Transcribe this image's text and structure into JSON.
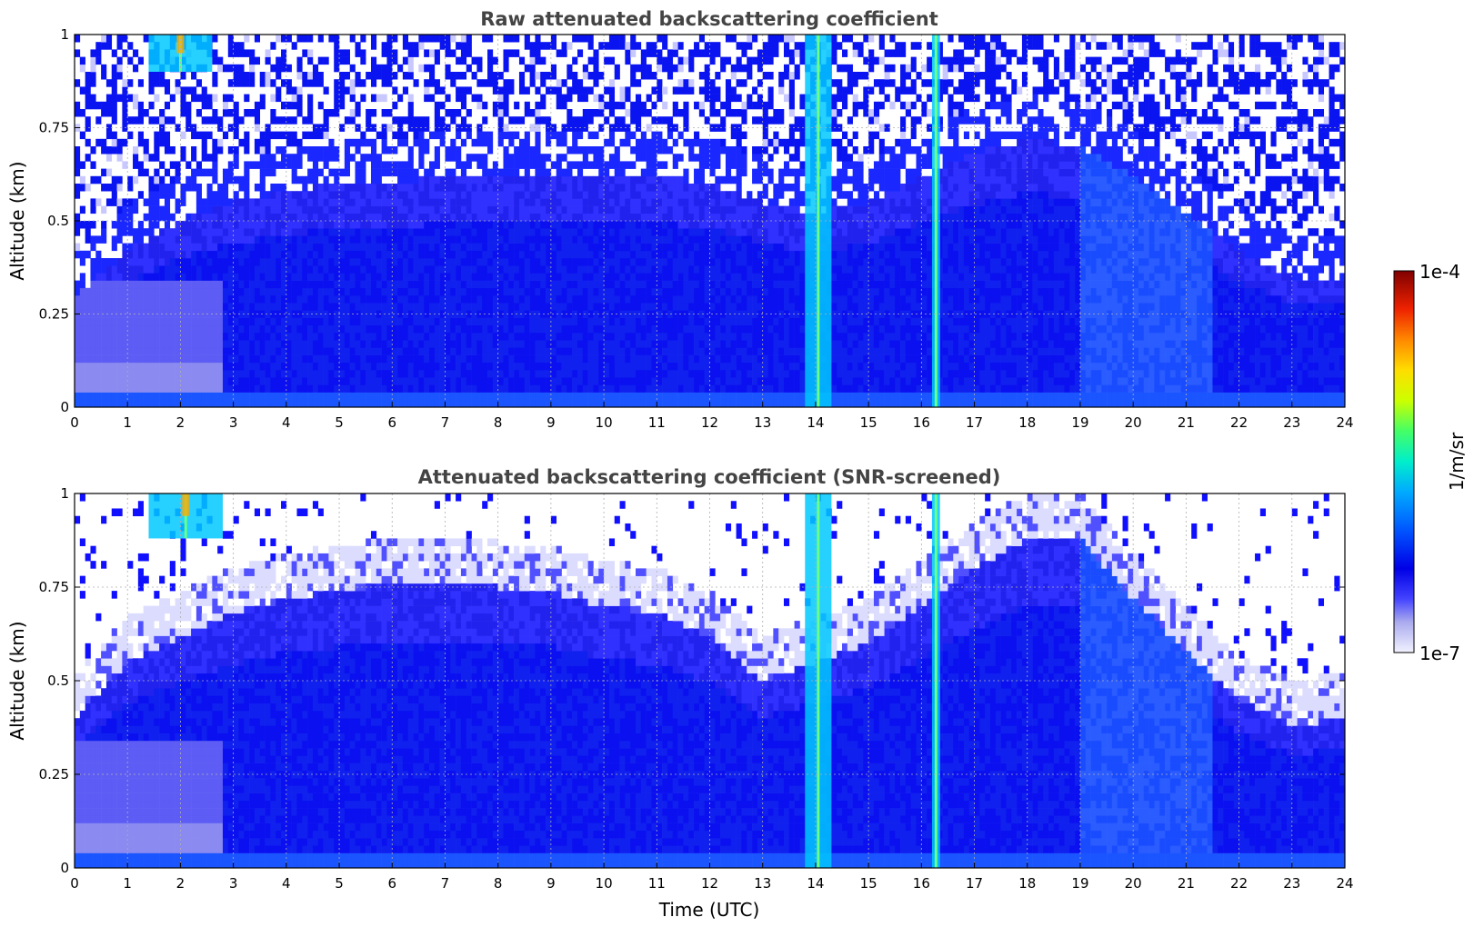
{
  "chart_data": [
    {
      "type": "heatmap",
      "title": "Raw attenuated backscattering coefficient",
      "xlabel": "",
      "ylabel": "Altitude (km)",
      "xlim": [
        0,
        24
      ],
      "ylim": [
        0,
        1
      ],
      "xticks": [
        "0",
        "1",
        "2",
        "3",
        "4",
        "5",
        "6",
        "7",
        "8",
        "9",
        "10",
        "11",
        "12",
        "13",
        "14",
        "15",
        "16",
        "17",
        "18",
        "19",
        "20",
        "21",
        "22",
        "23",
        "24"
      ],
      "yticks": [
        "0",
        "0.25",
        "0.5",
        "0.75",
        "1"
      ],
      "grid": true,
      "aerosol_layer_top_km": [
        [
          0,
          0.3
        ],
        [
          1,
          0.42
        ],
        [
          2,
          0.5
        ],
        [
          3,
          0.55
        ],
        [
          4,
          0.58
        ],
        [
          5,
          0.6
        ],
        [
          6,
          0.6
        ],
        [
          7,
          0.62
        ],
        [
          8,
          0.62
        ],
        [
          9,
          0.62
        ],
        [
          10,
          0.62
        ],
        [
          11,
          0.62
        ],
        [
          12,
          0.6
        ],
        [
          13,
          0.55
        ],
        [
          14,
          0.52
        ],
        [
          15,
          0.55
        ],
        [
          16,
          0.62
        ],
        [
          17,
          0.68
        ],
        [
          18,
          0.72
        ],
        [
          19,
          0.7
        ],
        [
          20,
          0.62
        ],
        [
          21,
          0.52
        ],
        [
          22,
          0.42
        ],
        [
          23,
          0.35
        ],
        [
          24,
          0.35
        ]
      ],
      "cloud_features": [
        {
          "t_start": 1.4,
          "t_end": 2.6,
          "alt_min_km": 0.9,
          "alt_max_km": 1.0
        },
        {
          "t_start": 13.8,
          "t_end": 14.3,
          "alt_min_km": 0.0,
          "alt_max_km": 1.0
        },
        {
          "t_start": 16.2,
          "t_end": 16.35,
          "alt_min_km": 0.0,
          "alt_max_km": 1.0
        }
      ]
    },
    {
      "type": "heatmap",
      "title": "Attenuated backscattering coefficient (SNR-screened)",
      "xlabel": "Time (UTC)",
      "ylabel": "Altitude (km)",
      "xlim": [
        0,
        24
      ],
      "ylim": [
        0,
        1
      ],
      "xticks": [
        "0",
        "1",
        "2",
        "3",
        "4",
        "5",
        "6",
        "7",
        "8",
        "9",
        "10",
        "11",
        "12",
        "13",
        "14",
        "15",
        "16",
        "17",
        "18",
        "19",
        "20",
        "21",
        "22",
        "23",
        "24"
      ],
      "yticks": [
        "0",
        "0.25",
        "0.5",
        "0.75",
        "1"
      ],
      "grid": true,
      "aerosol_layer_top_km": [
        [
          0,
          0.4
        ],
        [
          1,
          0.55
        ],
        [
          2,
          0.62
        ],
        [
          3,
          0.68
        ],
        [
          4,
          0.72
        ],
        [
          5,
          0.74
        ],
        [
          6,
          0.76
        ],
        [
          7,
          0.76
        ],
        [
          8,
          0.75
        ],
        [
          9,
          0.74
        ],
        [
          10,
          0.7
        ],
        [
          11,
          0.68
        ],
        [
          12,
          0.62
        ],
        [
          13,
          0.5
        ],
        [
          14,
          0.55
        ],
        [
          15,
          0.6
        ],
        [
          16,
          0.7
        ],
        [
          17,
          0.8
        ],
        [
          18,
          0.88
        ],
        [
          19,
          0.88
        ],
        [
          20,
          0.72
        ],
        [
          21,
          0.58
        ],
        [
          22,
          0.45
        ],
        [
          23,
          0.38
        ],
        [
          24,
          0.4
        ]
      ],
      "cloud_features": [
        {
          "t_start": 1.4,
          "t_end": 2.8,
          "alt_min_km": 0.88,
          "alt_max_km": 1.0
        },
        {
          "t_start": 13.8,
          "t_end": 14.3,
          "alt_min_km": 0.0,
          "alt_max_km": 1.0
        },
        {
          "t_start": 16.2,
          "t_end": 16.35,
          "alt_min_km": 0.0,
          "alt_max_km": 1.0
        }
      ]
    }
  ],
  "colorbar": {
    "label": "1/m/sr",
    "max_label": "1e-4",
    "min_label": "1e-7",
    "scale": "log",
    "range": [
      1e-07,
      0.0001
    ],
    "colors": [
      "#eeeeff",
      "#9999ee",
      "#3333ff",
      "#0000dd",
      "#0066ff",
      "#00ccff",
      "#00ff99",
      "#ccff00",
      "#ffcc00",
      "#ff6600",
      "#dd0000",
      "#800000"
    ]
  }
}
